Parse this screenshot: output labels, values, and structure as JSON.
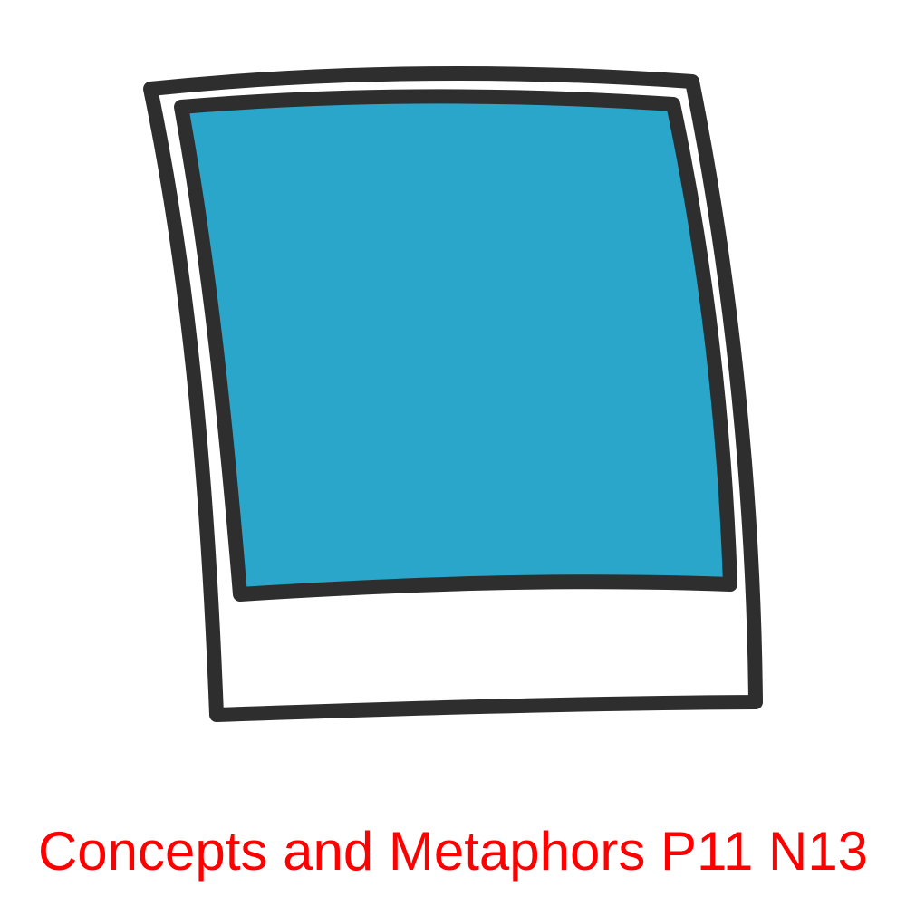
{
  "illustration": {
    "icon_name": "polaroid-photo-icon",
    "frame_color": "#ffffff",
    "photo_color": "#29a6c9",
    "outline_color": "#2e2e2e"
  },
  "caption": {
    "text": "Concepts and Metaphors P11 N13",
    "color": "#ff0000"
  }
}
